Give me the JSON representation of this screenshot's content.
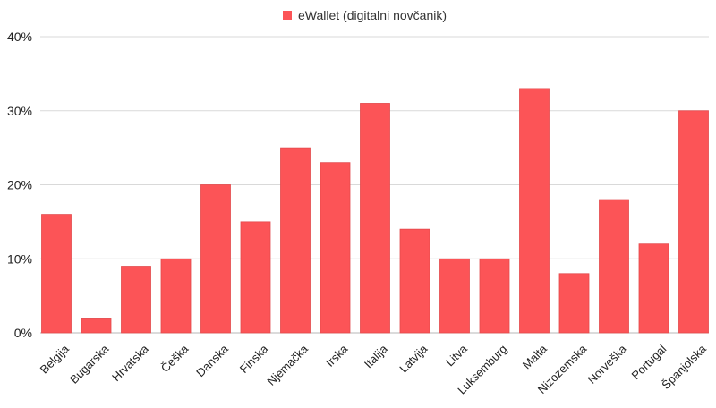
{
  "chart_data": {
    "type": "bar",
    "legend": {
      "position": "top-center",
      "entries": [
        {
          "name": "eWallet (digitalni novčanik)",
          "color": "#fc5457"
        }
      ]
    },
    "categories": [
      "Belgija",
      "Bugarska",
      "Hrvatska",
      "Češka",
      "Danska",
      "Finska",
      "Njemačka",
      "Irska",
      "Italija",
      "Latvija",
      "Litva",
      "Luksemburg",
      "Malta",
      "Nizozemska",
      "Norveška",
      "Portugal",
      "Španjolska"
    ],
    "series": [
      {
        "name": "eWallet (digitalni novčanik)",
        "color": "#fc5457",
        "values": [
          16,
          2,
          9,
          10,
          20,
          15,
          25,
          23,
          31,
          14,
          10,
          10,
          33,
          8,
          18,
          12,
          30
        ]
      }
    ],
    "ylim": [
      0,
      40
    ],
    "yticks": [
      0,
      10,
      20,
      30,
      40
    ],
    "ytick_labels": [
      "0%",
      "10%",
      "20%",
      "30%",
      "40%"
    ],
    "grid": true,
    "xlabel": "",
    "ylabel": ""
  }
}
